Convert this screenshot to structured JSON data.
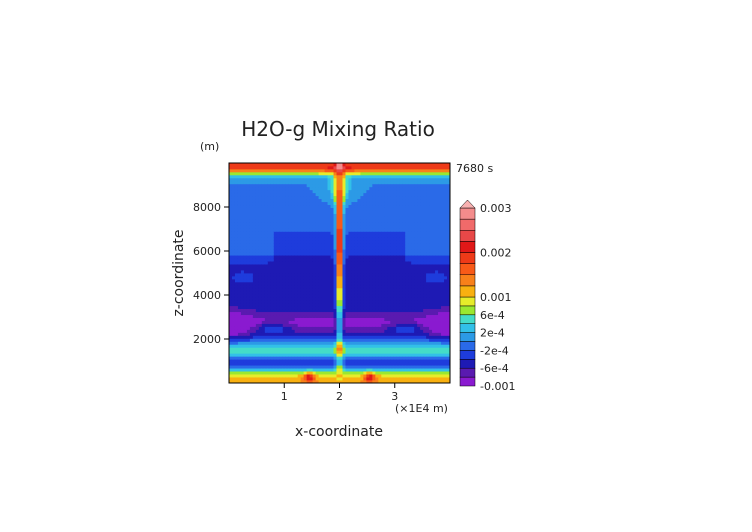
{
  "chart_data": {
    "type": "heatmap",
    "title": "H2O-g Mixing Ratio",
    "time_label": "7680 s",
    "xlabel": "x-coordinate",
    "ylabel": "z-coordinate",
    "x_unit_label": "(×1E4 m)",
    "y_unit_label": "(m)",
    "xlim": [
      0,
      4
    ],
    "ylim": [
      0,
      10000
    ],
    "x_ticks": [
      {
        "value": 1,
        "label": "1"
      },
      {
        "value": 2,
        "label": "2"
      },
      {
        "value": 3,
        "label": "3"
      }
    ],
    "y_ticks": [
      {
        "value": 2000,
        "label": "2000"
      },
      {
        "value": 4000,
        "label": "4000"
      },
      {
        "value": 6000,
        "label": "6000"
      },
      {
        "value": 8000,
        "label": "8000"
      }
    ],
    "colorbar": {
      "levels": [
        -0.001,
        -0.0008,
        -0.0006,
        -0.0004,
        -0.0002,
        0,
        0.0002,
        0.0004,
        0.0006,
        0.0008,
        0.001,
        0.00125,
        0.0015,
        0.00175,
        0.002,
        0.00225,
        0.0025,
        0.00275,
        0.003
      ],
      "colors": [
        "#8a1ad0",
        "#5a1ab0",
        "#1e1ab4",
        "#1e3cdc",
        "#2a6ae8",
        "#2c9ae6",
        "#32c0e8",
        "#44dcc8",
        "#9ae830",
        "#e6ec2a",
        "#f8b010",
        "#f8801a",
        "#f85a18",
        "#ee3a18",
        "#e01818",
        "#e84848",
        "#f06a6a",
        "#f48c8c",
        "#f8b0b0"
      ],
      "tick_labels": [
        {
          "value": -0.001,
          "label": "-0.001"
        },
        {
          "value": -0.0006,
          "label": "-6e-4"
        },
        {
          "value": -0.0002,
          "label": "-2e-4"
        },
        {
          "value": 0.0002,
          "label": "2e-4"
        },
        {
          "value": 0.0006,
          "label": "6e-4"
        },
        {
          "value": 0.001,
          "label": "0.001"
        },
        {
          "value": 0.002,
          "label": "0.002"
        },
        {
          "value": 0.003,
          "label": "0.003"
        }
      ]
    },
    "grid": false
  }
}
